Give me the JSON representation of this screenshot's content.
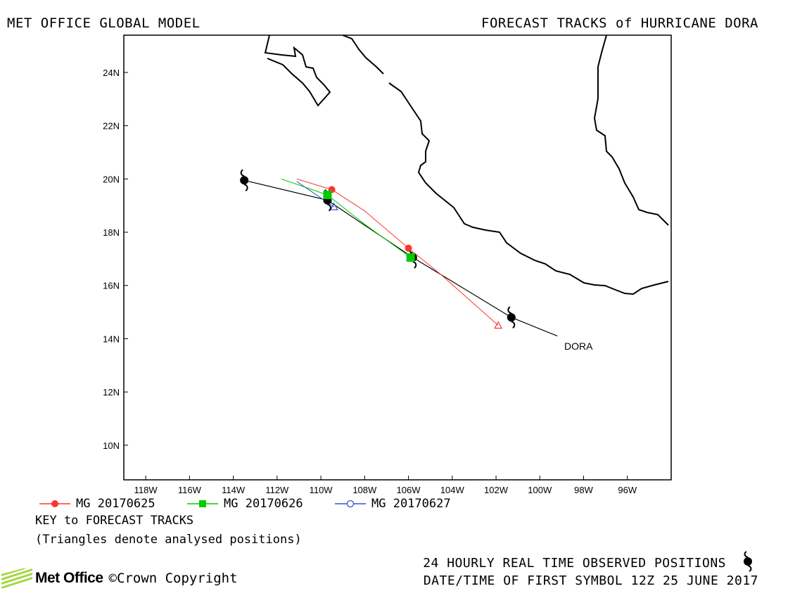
{
  "header": {
    "left_title": "MET OFFICE GLOBAL MODEL",
    "right_title": "FORECAST TRACKS of HURRICANE DORA"
  },
  "map": {
    "lon_range": [
      -119,
      -94
    ],
    "lat_range": [
      8.7,
      25.4
    ],
    "lat_ticks": [
      "24N",
      "22N",
      "20N",
      "18N",
      "16N",
      "14N",
      "12N",
      "10N"
    ],
    "lon_ticks": [
      "118W",
      "116W",
      "114W",
      "112W",
      "110W",
      "108W",
      "106W",
      "104W",
      "102W",
      "100W",
      "98W",
      "96W"
    ],
    "storm_label": "DORA"
  },
  "tracks": {
    "observed": {
      "color": "#000000",
      "points": [
        [
          -99.2,
          14.1
        ],
        [
          -101.3,
          14.8
        ],
        [
          -105.8,
          17.05
        ],
        [
          -109.7,
          19.2
        ],
        [
          -113.5,
          19.95
        ]
      ],
      "symbols": [
        [
          -101.3,
          14.8
        ],
        [
          -105.8,
          17.05
        ],
        [
          -109.7,
          19.2
        ],
        [
          -113.5,
          19.95
        ]
      ]
    },
    "forecasts": [
      {
        "name": "MG 20170625",
        "color": "#ff3333",
        "marker": "circle",
        "points": [
          [
            -101.9,
            14.5
          ],
          [
            -104.5,
            16.4
          ],
          [
            -106.0,
            17.4
          ],
          [
            -108.0,
            18.8
          ],
          [
            -109.5,
            19.6
          ],
          [
            -111.1,
            20.0
          ]
        ],
        "markers": [
          [
            -106.0,
            17.4
          ],
          [
            -109.5,
            19.6
          ]
        ],
        "analysed": [
          -101.9,
          14.5
        ]
      },
      {
        "name": "MG 20170626",
        "color": "#00cc00",
        "marker": "square",
        "points": [
          [
            -105.9,
            17.05
          ],
          [
            -108.0,
            18.3
          ],
          [
            -109.7,
            19.4
          ],
          [
            -111.8,
            20.0
          ]
        ],
        "markers": [
          [
            -105.9,
            17.05
          ],
          [
            -109.7,
            19.4
          ]
        ],
        "analysed": [
          -105.9,
          17.05
        ]
      },
      {
        "name": "MG 20170627",
        "color": "#3355cc",
        "marker": "open-circle",
        "points": [
          [
            -109.4,
            18.95
          ],
          [
            -110.2,
            19.4
          ],
          [
            -111.1,
            19.9
          ]
        ],
        "markers": [],
        "analysed": [
          -109.4,
          18.95
        ]
      }
    ]
  },
  "key": {
    "title": "KEY to FORECAST TRACKS",
    "note": "(Triangles denote analysed positions)"
  },
  "footer": {
    "observed_label": "24 HOURLY REAL TIME OBSERVED POSITIONS",
    "datetime_label": "DATE/TIME OF FIRST SYMBOL 12Z 25 JUNE 2017",
    "logo_text": "Met Office",
    "copyright": "©Crown Copyright"
  }
}
